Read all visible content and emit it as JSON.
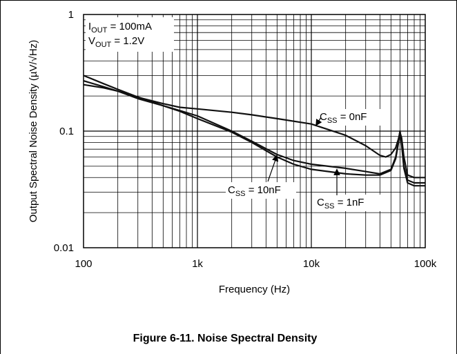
{
  "caption": "Figure 6-11. Noise Spectral Density",
  "chart_data": {
    "type": "line",
    "xlabel": "Frequency (Hz)",
    "ylabel": "Output Spectral Noise Density (µV/√Hz)",
    "xscale": "log",
    "yscale": "log",
    "xlim": [
      100,
      100000
    ],
    "ylim": [
      0.01,
      1
    ],
    "x_tick_labels": [
      "100",
      "1k",
      "10k",
      "100k"
    ],
    "y_tick_labels": [
      "0.01",
      "0.1",
      "1"
    ],
    "grid": true,
    "conditions": [
      {
        "main": "I",
        "sub": "OUT",
        "rest": " = 100mA"
      },
      {
        "main": "V",
        "sub": "OUT",
        "rest": " = 1.2V"
      }
    ],
    "series": [
      {
        "label_main": "C",
        "label_sub": "SS",
        "label_rest": " = 0nF",
        "points": [
          [
            100,
            0.25
          ],
          [
            150,
            0.235
          ],
          [
            200,
            0.22
          ],
          [
            300,
            0.195
          ],
          [
            500,
            0.172
          ],
          [
            700,
            0.16
          ],
          [
            1000,
            0.155
          ],
          [
            2000,
            0.145
          ],
          [
            3000,
            0.138
          ],
          [
            5000,
            0.128
          ],
          [
            10000,
            0.115
          ],
          [
            20000,
            0.092
          ],
          [
            30000,
            0.075
          ],
          [
            40000,
            0.062
          ],
          [
            45000,
            0.06
          ],
          [
            50000,
            0.063
          ],
          [
            55000,
            0.072
          ],
          [
            58000,
            0.085
          ],
          [
            60000,
            0.097
          ],
          [
            62000,
            0.088
          ],
          [
            65000,
            0.06
          ],
          [
            70000,
            0.042
          ],
          [
            80000,
            0.04
          ],
          [
            100000,
            0.04
          ]
        ]
      },
      {
        "label_main": "C",
        "label_sub": "SS",
        "label_rest": " = 1nF",
        "points": [
          [
            100,
            0.27
          ],
          [
            150,
            0.24
          ],
          [
            200,
            0.22
          ],
          [
            300,
            0.19
          ],
          [
            500,
            0.165
          ],
          [
            700,
            0.15
          ],
          [
            1000,
            0.135
          ],
          [
            2000,
            0.1
          ],
          [
            3000,
            0.082
          ],
          [
            5000,
            0.063
          ],
          [
            7000,
            0.056
          ],
          [
            10000,
            0.052
          ],
          [
            20000,
            0.048
          ],
          [
            30000,
            0.045
          ],
          [
            40000,
            0.043
          ],
          [
            50000,
            0.047
          ],
          [
            55000,
            0.06
          ],
          [
            58000,
            0.08
          ],
          [
            60000,
            0.1
          ],
          [
            62000,
            0.08
          ],
          [
            65000,
            0.05
          ],
          [
            70000,
            0.038
          ],
          [
            80000,
            0.036
          ],
          [
            100000,
            0.036
          ]
        ]
      },
      {
        "label_main": "C",
        "label_sub": "SS",
        "label_rest": " = 10nF",
        "points": [
          [
            100,
            0.3
          ],
          [
            150,
            0.255
          ],
          [
            200,
            0.228
          ],
          [
            300,
            0.196
          ],
          [
            500,
            0.165
          ],
          [
            700,
            0.148
          ],
          [
            1000,
            0.128
          ],
          [
            2000,
            0.098
          ],
          [
            3000,
            0.08
          ],
          [
            5000,
            0.06
          ],
          [
            7000,
            0.052
          ],
          [
            10000,
            0.047
          ],
          [
            20000,
            0.043
          ],
          [
            30000,
            0.042
          ],
          [
            40000,
            0.042
          ],
          [
            50000,
            0.046
          ],
          [
            55000,
            0.058
          ],
          [
            58000,
            0.078
          ],
          [
            60000,
            0.1
          ],
          [
            62000,
            0.078
          ],
          [
            65000,
            0.048
          ],
          [
            70000,
            0.036
          ],
          [
            80000,
            0.034
          ],
          [
            100000,
            0.034
          ]
        ]
      }
    ]
  }
}
